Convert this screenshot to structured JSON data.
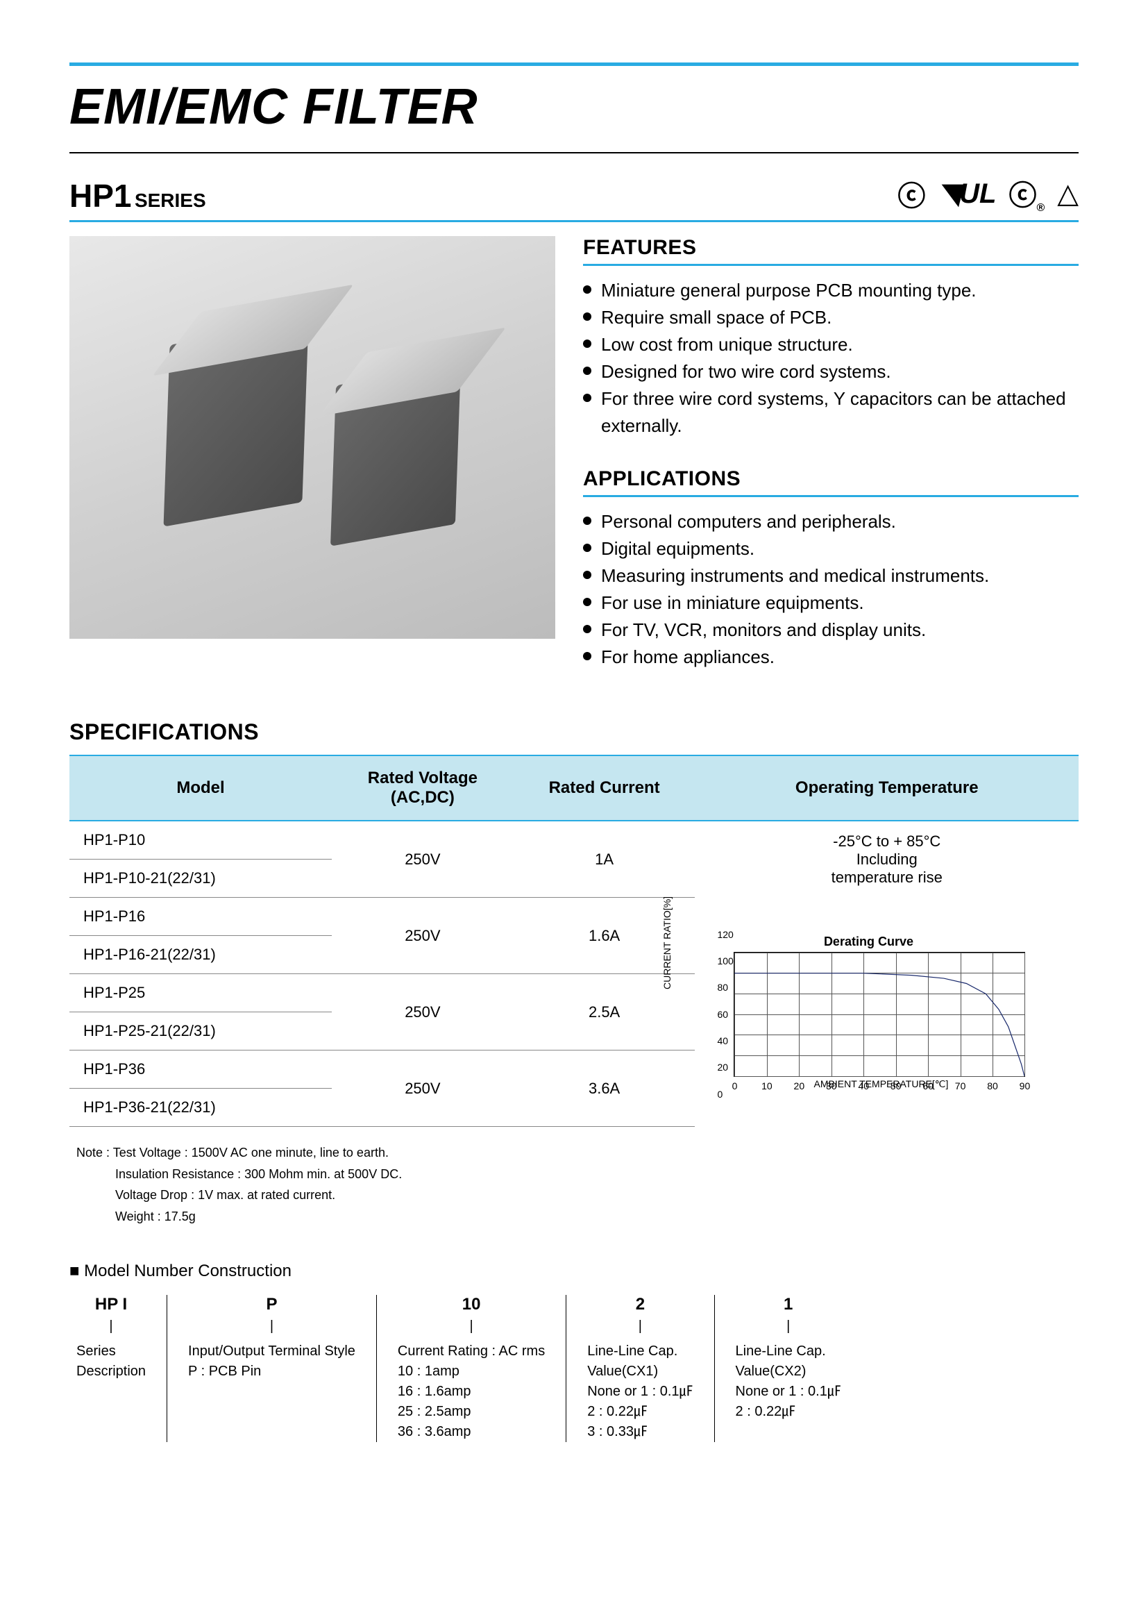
{
  "title": "EMI/EMC FILTER",
  "series": {
    "name": "HP1",
    "suffix": "SERIES"
  },
  "cert_icons": [
    "KC",
    "UL",
    "CSA",
    "△"
  ],
  "features": {
    "heading": "FEATURES",
    "items": [
      "Miniature general purpose PCB mounting type.",
      "Require small space of PCB.",
      "Low cost from unique structure.",
      "Designed for two wire cord systems.",
      "For three wire cord systems, Y capacitors can be attached externally."
    ]
  },
  "applications": {
    "heading": "APPLICATIONS",
    "items": [
      "Personal computers and peripherals.",
      "Digital equipments.",
      "Measuring instruments and medical instruments.",
      "For use in miniature equipments.",
      "For TV, VCR, monitors and display units.",
      "For home appliances."
    ]
  },
  "specifications": {
    "heading": "SPECIFICATIONS",
    "columns": [
      "Model",
      "Rated Voltage (AC,DC)",
      "Rated Current",
      "Operating Temperature"
    ],
    "temp_text": "-25°C to + 85°C\nIncluding\ntemperature rise",
    "groups": [
      {
        "models": [
          "HP1-P10",
          "HP1-P10-21(22/31)"
        ],
        "voltage": "250V",
        "current": "1A"
      },
      {
        "models": [
          "HP1-P16",
          "HP1-P16-21(22/31)"
        ],
        "voltage": "250V",
        "current": "1.6A"
      },
      {
        "models": [
          "HP1-P25",
          "HP1-P25-21(22/31)"
        ],
        "voltage": "250V",
        "current": "2.5A"
      },
      {
        "models": [
          "HP1-P36",
          "HP1-P36-21(22/31)"
        ],
        "voltage": "250V",
        "current": "3.6A"
      }
    ],
    "notes": [
      "Note : Test Voltage : 1500V AC one minute, line to earth.",
      "Insulation Resistance : 300 Mohm min. at 500V DC.",
      "Voltage Drop : 1V max. at rated current.",
      "Weight : 17.5g"
    ]
  },
  "derating_chart": {
    "title": "Derating Curve",
    "ylabel": "CURRENT RATIO[%]",
    "xlabel": "AMBIENT TEMPERATURE[℃]",
    "xlim": [
      0,
      90
    ],
    "ylim": [
      0,
      120
    ],
    "xticks": [
      0,
      10,
      20,
      30,
      40,
      50,
      60,
      70,
      80,
      90
    ],
    "yticks": [
      0,
      20,
      40,
      60,
      80,
      100,
      120
    ],
    "line_color": "#1a2a6c",
    "grid_color": "#555555",
    "background_color": "#ffffff",
    "points_x": [
      0,
      40,
      55,
      65,
      72,
      78,
      82,
      85,
      87,
      89,
      90
    ],
    "points_y": [
      100,
      100,
      98,
      95,
      90,
      80,
      65,
      48,
      30,
      12,
      0
    ]
  },
  "mnc": {
    "heading": "Model Number Construction",
    "cols": [
      {
        "head": "HP I",
        "body": "Series\nDescription"
      },
      {
        "head": "P",
        "body": "Input/Output Terminal Style\nP : PCB Pin"
      },
      {
        "head": "10",
        "body": "Current Rating : AC rms\n10 : 1amp\n16 : 1.6amp\n25 : 2.5amp\n36 : 3.6amp"
      },
      {
        "head": "2",
        "body": "Line-Line Cap.\nValue(CX1)\nNone or 1 : 0.1㎌\n2 : 0.22㎌\n3 : 0.33㎌"
      },
      {
        "head": "1",
        "body": "Line-Line Cap.\nValue(CX2)\nNone or 1 : 0.1㎌\n2 : 0.22㎌"
      }
    ]
  },
  "colors": {
    "accent": "#29abe2",
    "table_header_bg": "#c5e6f0"
  }
}
